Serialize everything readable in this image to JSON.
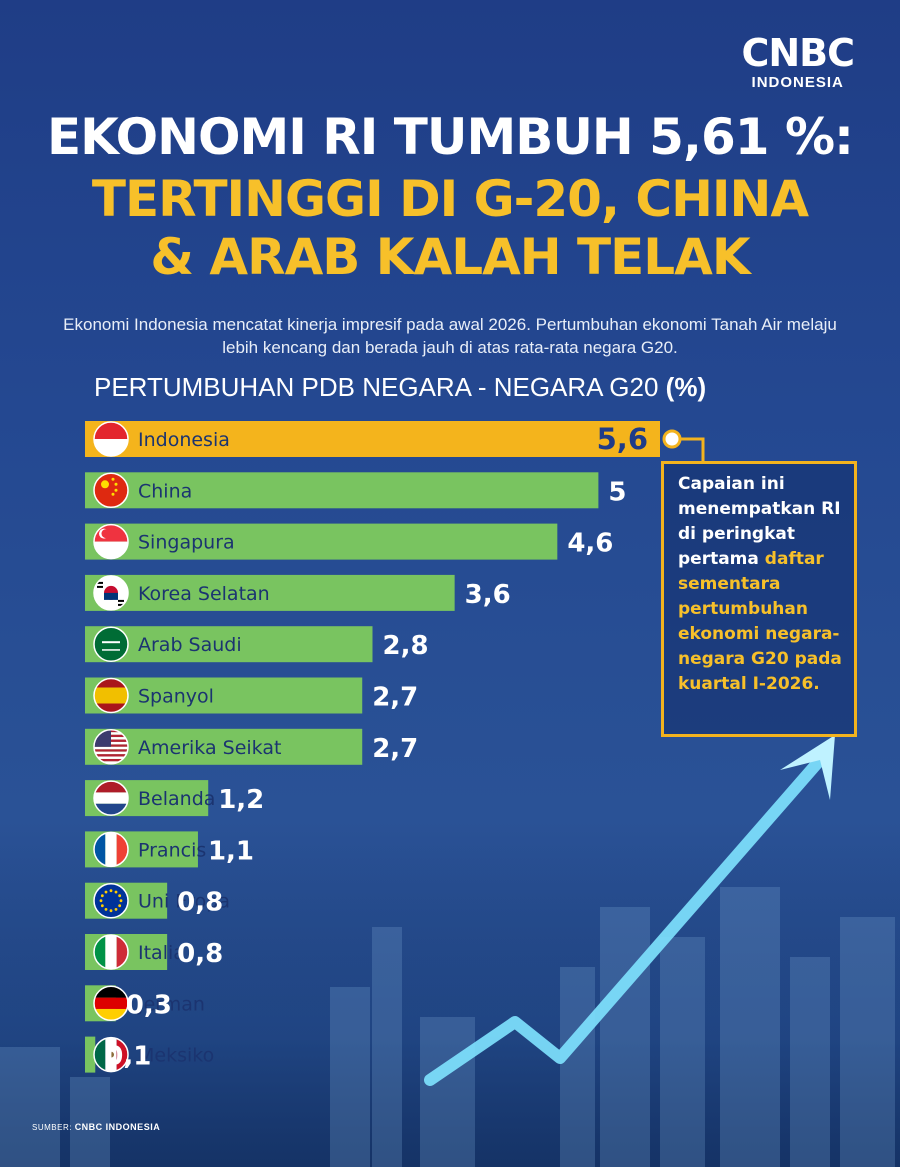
{
  "brand": {
    "logo_main": "CNBC",
    "logo_sub": "INDONESIA"
  },
  "headline": {
    "line1": "EKONOMI RI TUMBUH 5,61 %:",
    "line2": "TERTINGGI DI G-20, CHINA",
    "line3": "& ARAB KALAH TELAK"
  },
  "subtitle": "Ekonomi Indonesia mencatat kinerja impresif pada awal 2026. Pertumbuhan ekonomi Tanah Air melaju lebih kencang dan berada jauh di atas rata-rata negara G20.",
  "annotation": {
    "white_text": "Capaian ini menempatkan RI di peringkat pertama",
    "yellow_text": "daftar sementara pertumbuhan ekonomi negara-negara G20 pada kuartal I-2026."
  },
  "source": {
    "label": "SUMBER:",
    "value": "CNBC INDONESIA"
  },
  "colors": {
    "highlight_bar": "#f4b41c",
    "bar": "#79c460",
    "highlight_value": "#1f3c88",
    "value": "#ffffff",
    "label": "#1b3470",
    "accent": "#f7c02a"
  },
  "chart_data": {
    "type": "bar",
    "orientation": "horizontal",
    "title": "PERTUMBUHAN PDB NEGARA - NEGARA G20 (%)",
    "categories": [
      "Indonesia",
      "China",
      "Singapura",
      "Korea Selatan",
      "Arab Saudi",
      "Spanyol",
      "Amerika Seikat",
      "Belanda",
      "Prancis",
      "Uni Eropa",
      "Italia",
      "Jerman",
      "Meksiko"
    ],
    "values": [
      5.6,
      5,
      4.6,
      3.6,
      2.8,
      2.7,
      2.7,
      1.2,
      1.1,
      0.8,
      0.8,
      0.3,
      0.1
    ],
    "value_labels": [
      "5,6",
      "5",
      "4,6",
      "3,6",
      "2,8",
      "2,7",
      "2,7",
      "1,2",
      "1,1",
      "0,8",
      "0,8",
      "0,3",
      "0,1"
    ],
    "flag_icons": [
      "flag-indonesia-icon",
      "flag-china-icon",
      "flag-singapore-icon",
      "flag-south-korea-icon",
      "flag-saudi-arabia-icon",
      "flag-spain-icon",
      "flag-usa-icon",
      "flag-netherlands-icon",
      "flag-france-icon",
      "flag-eu-icon",
      "flag-italy-icon",
      "flag-germany-icon",
      "flag-mexico-icon"
    ],
    "highlight_index": 0,
    "xlim": [
      0,
      5.6
    ],
    "grid": false,
    "legend": "none"
  }
}
